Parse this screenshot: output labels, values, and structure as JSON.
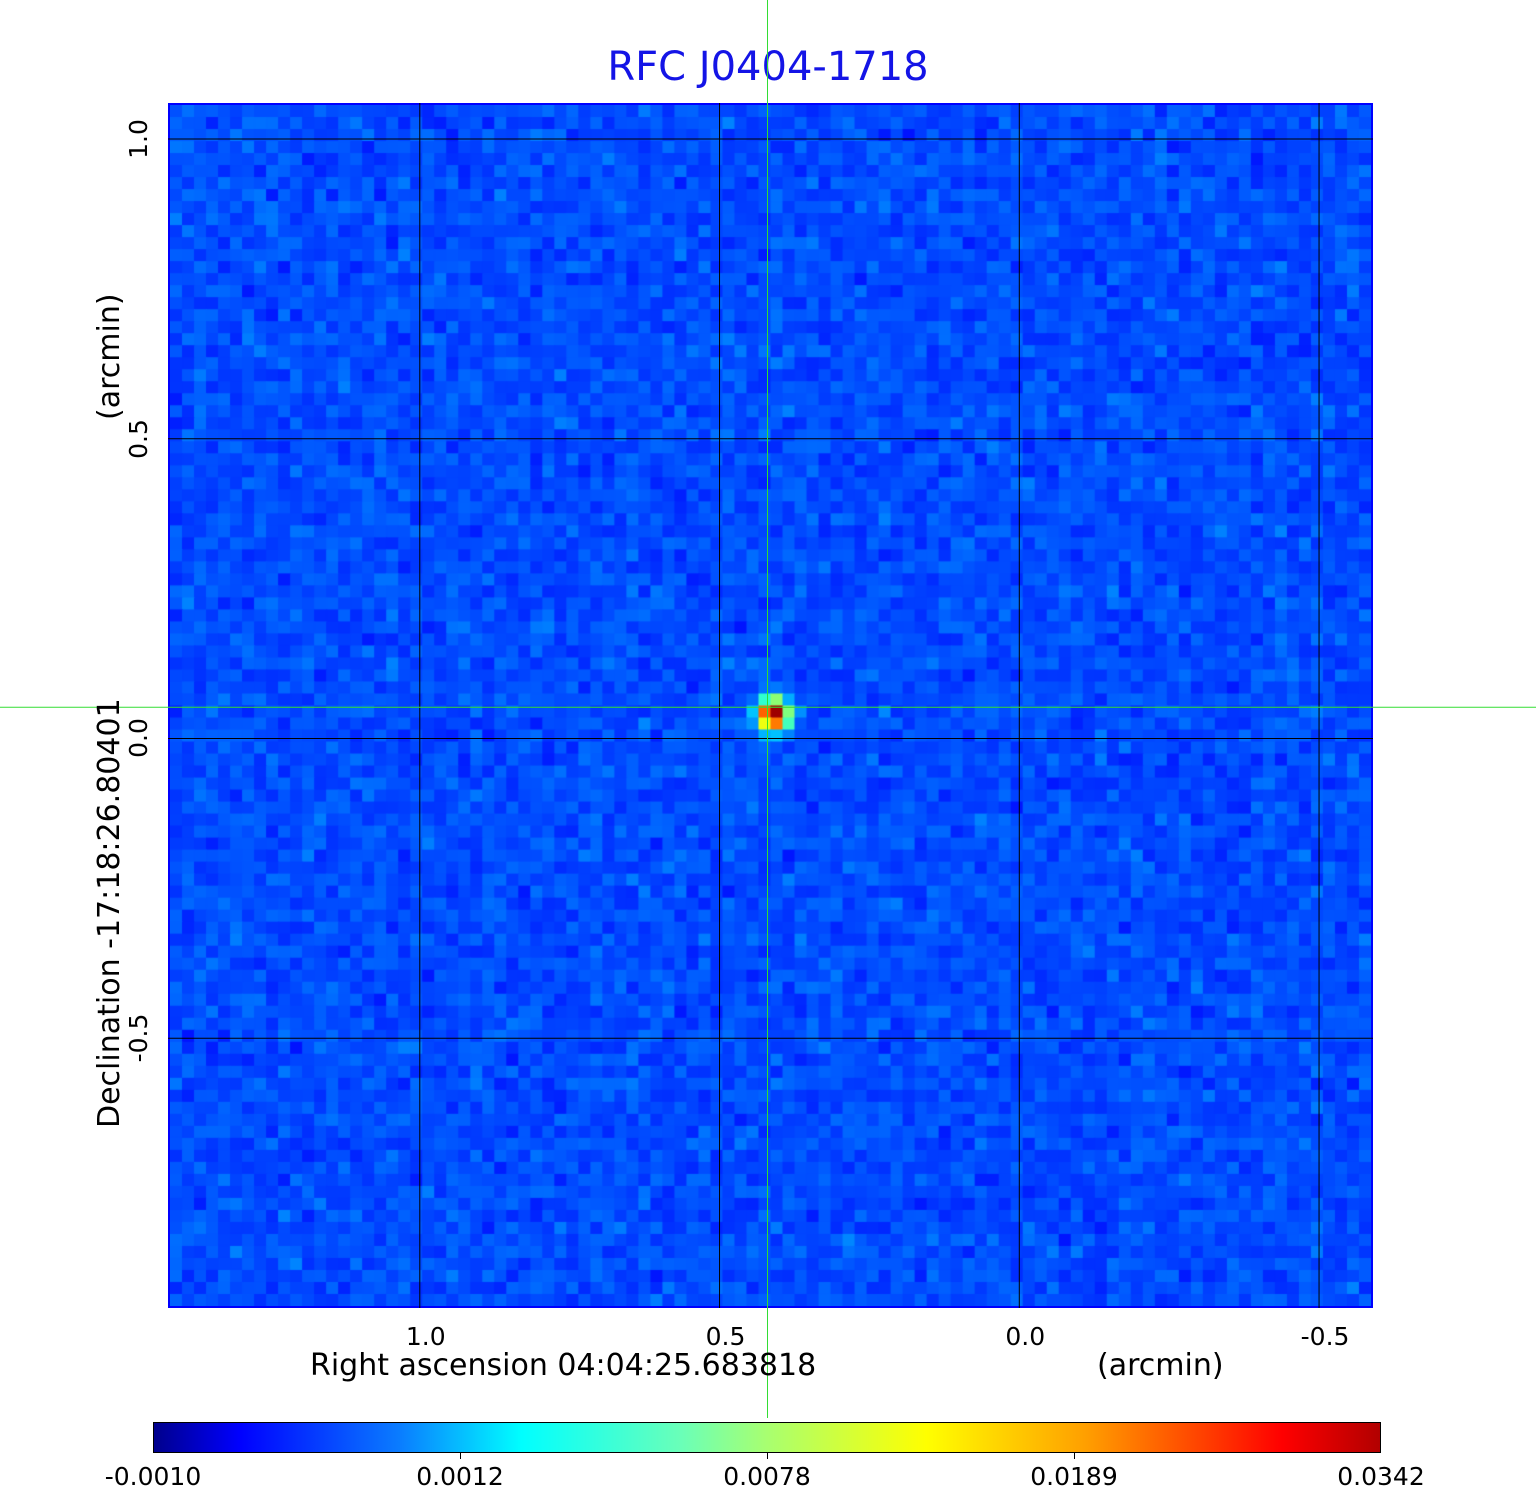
{
  "chart_data": {
    "type": "heatmap",
    "title": "RFC J0404-1718",
    "xlabel": "Right ascension  04:04:25.683818",
    "xunit": "(arcmin)",
    "ylabel": "Declination  -17:18:26.80401",
    "yunit": "(arcmin)",
    "xlim": [
      1.42,
      -0.59
    ],
    "ylim": [
      -0.95,
      1.06
    ],
    "xticks": [
      {
        "value": 1.0,
        "label": "1.0"
      },
      {
        "value": 0.5,
        "label": "0.5"
      },
      {
        "value": 0.0,
        "label": "0.0"
      },
      {
        "value": -0.5,
        "label": "-0.5"
      }
    ],
    "yticks": [
      {
        "value": 1.0,
        "label": "1.0"
      },
      {
        "value": 0.5,
        "label": "0.5"
      },
      {
        "value": 0.0,
        "label": "0.0"
      },
      {
        "value": -0.5,
        "label": "-0.5"
      }
    ],
    "grid": true,
    "colormap": "jet",
    "colorbar": {
      "ticks": [
        "-0.0010",
        "0.0012",
        "0.0078",
        "0.0189",
        "0.0342"
      ],
      "min": -0.001,
      "max": 0.0342,
      "placement": "bottom"
    },
    "source": {
      "x": 0.42,
      "y": 0.05,
      "peak": 0.0342
    },
    "crosshair": {
      "x": 0.42,
      "y": 0.052,
      "color": "#33dd33"
    },
    "background_level": 0.0
  }
}
